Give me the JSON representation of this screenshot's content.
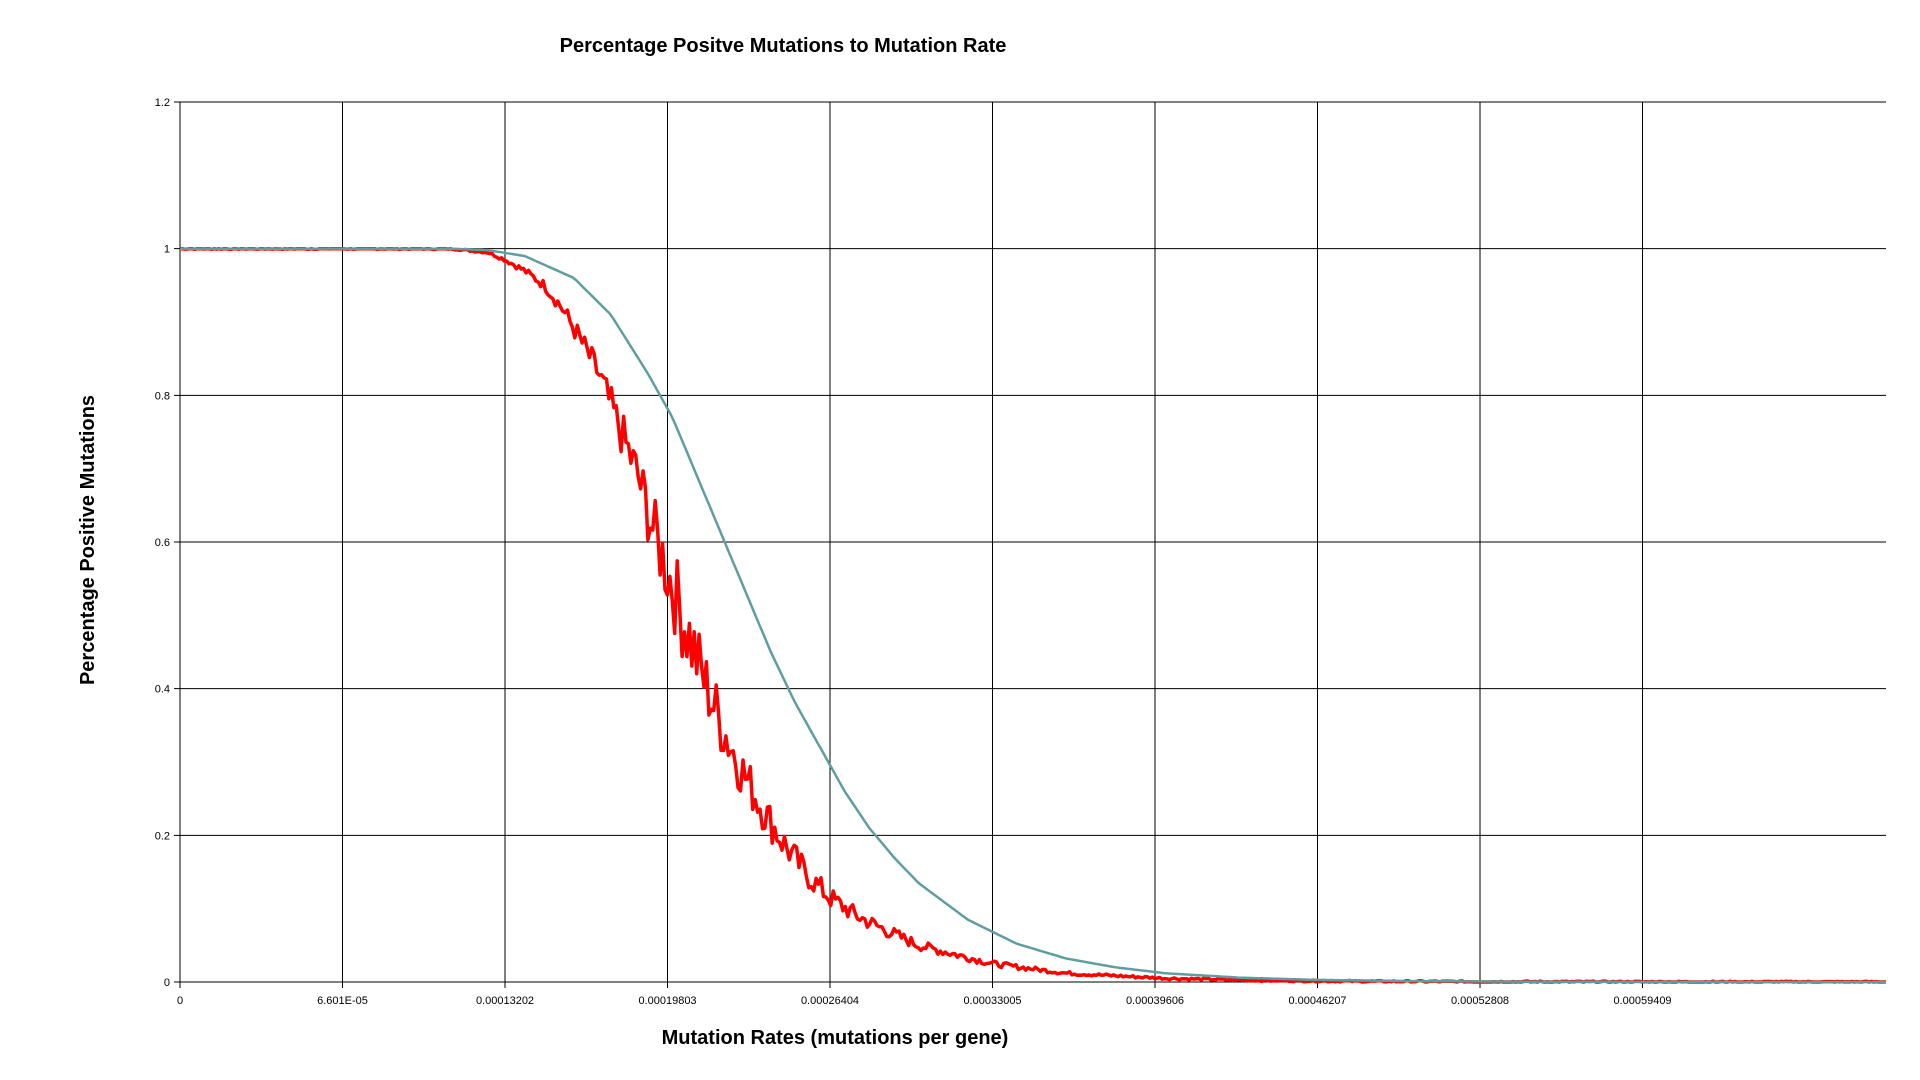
{
  "chart_data": {
    "type": "line",
    "title": "Percentage Positve Mutations to Mutation Rate",
    "xlabel": "Mutation Rates (mutations per gene)",
    "ylabel": "Percentage Positive Mutations",
    "xlim": [
      0,
      0.000693
    ],
    "ylim": [
      0,
      1.2
    ],
    "x_tick_values": [
      0,
      6.601e-05,
      0.00013202,
      0.00019803,
      0.00026404,
      0.00033005,
      0.00039606,
      0.00046207,
      0.00052808,
      0.00059409
    ],
    "x_tick_labels": [
      "0",
      "6.601E-05",
      "0.00013202",
      "0.00019803",
      "0.00026404",
      "0.00033005",
      "0.00039606",
      "0.00046207",
      "0.00052808",
      "0.00059409"
    ],
    "y_tick_values": [
      0,
      0.2,
      0.4,
      0.6,
      0.8,
      1,
      1.2
    ],
    "y_tick_labels": [
      "0",
      "0.2",
      "0.4",
      "0.6",
      "0.8",
      "1",
      "1.2"
    ],
    "grid": true,
    "legend": "none",
    "series": [
      {
        "color": "#ff0000",
        "x": [
          0,
          0.00011,
          0.000125,
          0.000132,
          0.00014,
          0.000148,
          0.000155,
          0.000162,
          0.00017,
          0.000178,
          0.000186,
          0.000192,
          0.000198,
          0.000205,
          0.000212,
          0.00022,
          0.000228,
          0.000236,
          0.000245,
          0.000255,
          0.000264,
          0.000275,
          0.000287,
          0.0003,
          0.00033,
          0.00036,
          0.0004,
          0.00044,
          0.00048,
          0.00052,
          0.00056,
          0.0006,
          0.000693
        ],
        "y": [
          1.0,
          1.0,
          0.995,
          0.985,
          0.97,
          0.95,
          0.92,
          0.88,
          0.83,
          0.76,
          0.69,
          0.62,
          0.56,
          0.49,
          0.42,
          0.35,
          0.29,
          0.24,
          0.19,
          0.145,
          0.115,
          0.09,
          0.07,
          0.05,
          0.025,
          0.012,
          0.005,
          0.002,
          0.001,
          0.0005,
          0.0003,
          0.0002,
          0.0001
        ],
        "noise": true
      },
      {
        "color": "#5f9ea0",
        "x": [
          0,
          0.00011,
          0.000125,
          0.00014,
          0.00016,
          0.000175,
          0.00019,
          0.0002,
          0.00021,
          0.00022,
          0.00023,
          0.00024,
          0.00025,
          0.00026,
          0.00027,
          0.00028,
          0.00029,
          0.0003,
          0.00032,
          0.00034,
          0.00036,
          0.00038,
          0.0004,
          0.00043,
          0.00046,
          0.0005,
          0.00055,
          0.0006,
          0.000693
        ],
        "y": [
          1.0,
          1.0,
          0.998,
          0.99,
          0.96,
          0.91,
          0.83,
          0.77,
          0.69,
          0.61,
          0.53,
          0.45,
          0.38,
          0.32,
          0.26,
          0.21,
          0.17,
          0.135,
          0.085,
          0.052,
          0.032,
          0.02,
          0.012,
          0.006,
          0.003,
          0.0012,
          0.0004,
          0.0001,
          0.0
        ]
      }
    ]
  }
}
